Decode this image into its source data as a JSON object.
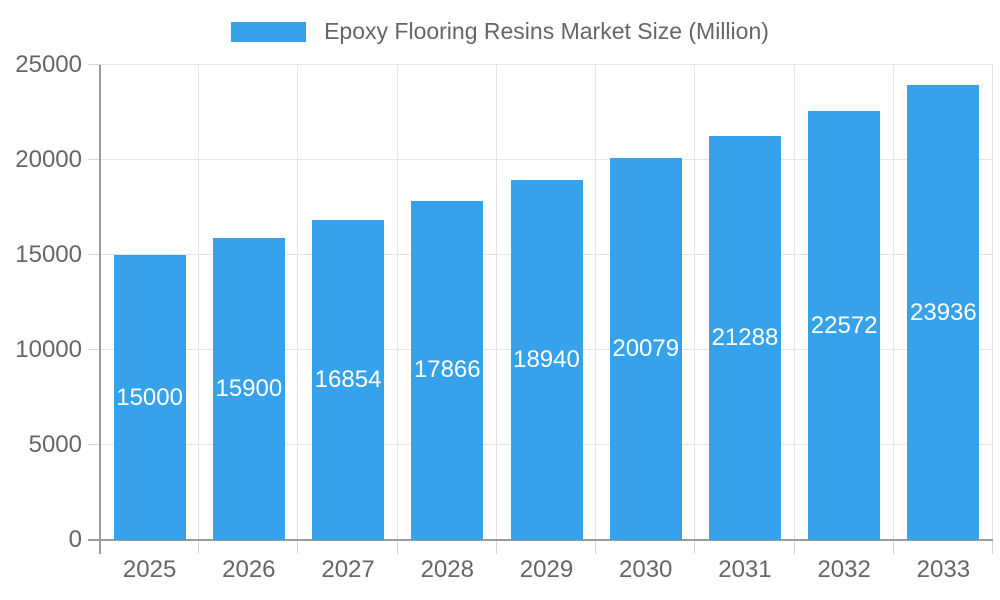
{
  "chart_data": {
    "type": "bar",
    "title": "Epoxy Flooring Resins Market Size (Million)",
    "categories": [
      "2025",
      "2026",
      "2027",
      "2028",
      "2029",
      "2030",
      "2031",
      "2032",
      "2033"
    ],
    "values": [
      15000,
      15900,
      16854,
      17866,
      18940,
      20079,
      21288,
      22572,
      23936
    ],
    "bar_labels": [
      "15000",
      "15900",
      "16854",
      "17866",
      "18940",
      "20079",
      "21288",
      "22572",
      "23936"
    ],
    "ylim": [
      0,
      25000
    ],
    "yticks": [
      "0",
      "5000",
      "10000",
      "15000",
      "20000",
      "25000"
    ],
    "xlabel": "",
    "ylabel": "",
    "grid": true,
    "legend_position": "top",
    "colors": {
      "bar": "#36A2EB",
      "bar_label": "#FFFFFF",
      "axis_text": "#666666",
      "grid_line": "#E5E5E5",
      "axis_line": "#9B9B9B",
      "tick_mark": "#D4D4D4",
      "background": "#FFFFFF"
    }
  }
}
